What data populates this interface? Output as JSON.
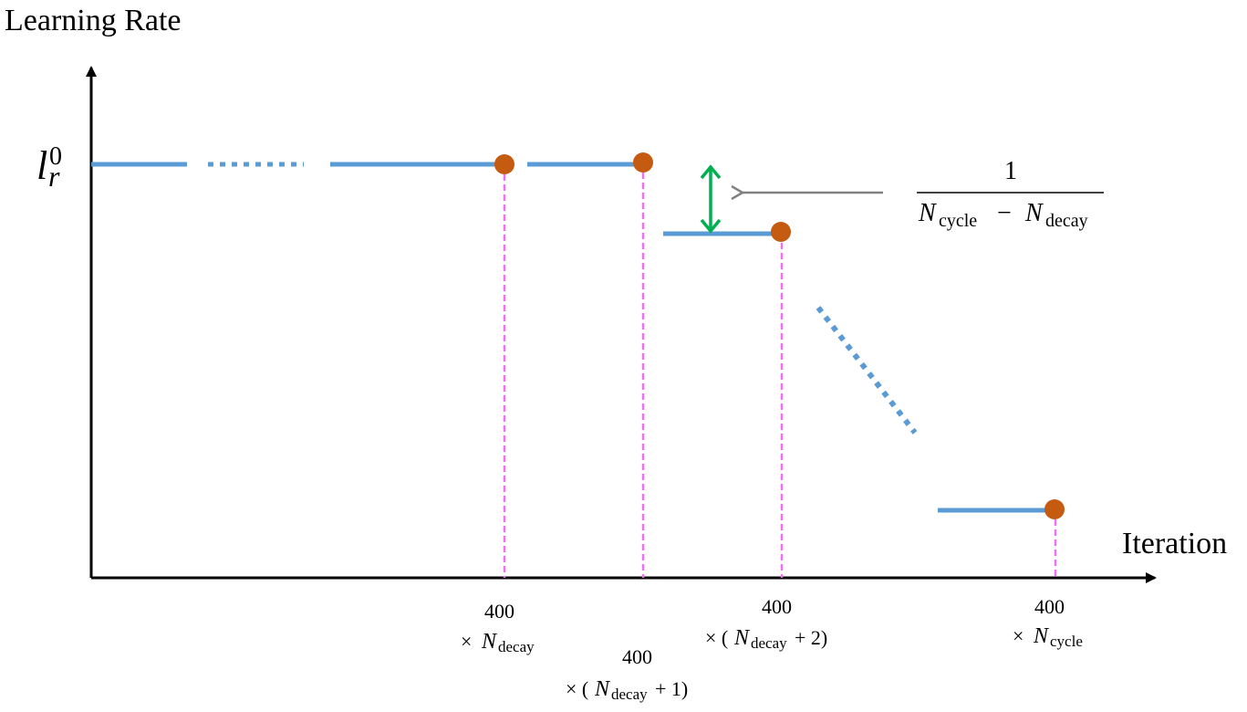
{
  "axes": {
    "y_label": "Learning Rate",
    "x_label": "Iteration"
  },
  "y_tick": {
    "base": "l",
    "sub": "r",
    "sup": "0"
  },
  "annotation": {
    "numerator": "1",
    "den_a_base": "N",
    "den_a_sub": "cycle",
    "minus": "−",
    "den_b_base": "N",
    "den_b_sub": "decay"
  },
  "x_ticks": [
    {
      "num": "400",
      "times": "×",
      "base": "N",
      "sub": "decay",
      "tail": ""
    },
    {
      "num": "400",
      "times": "× (",
      "base": "N",
      "sub": "decay",
      "tail": "+ 1)"
    },
    {
      "num": "400",
      "times": "× (",
      "base": "N",
      "sub": "decay",
      "tail": "+ 2)"
    },
    {
      "num": "400",
      "times": "×",
      "base": "N",
      "sub": "cycle",
      "tail": ""
    }
  ],
  "colors": {
    "axis": "#000000",
    "step_line": "#5b9bd5",
    "marker": "#c55a11",
    "guide_line": "#f070f0",
    "double_arrow": "#00b050",
    "pointer_arrow": "#808080"
  }
}
